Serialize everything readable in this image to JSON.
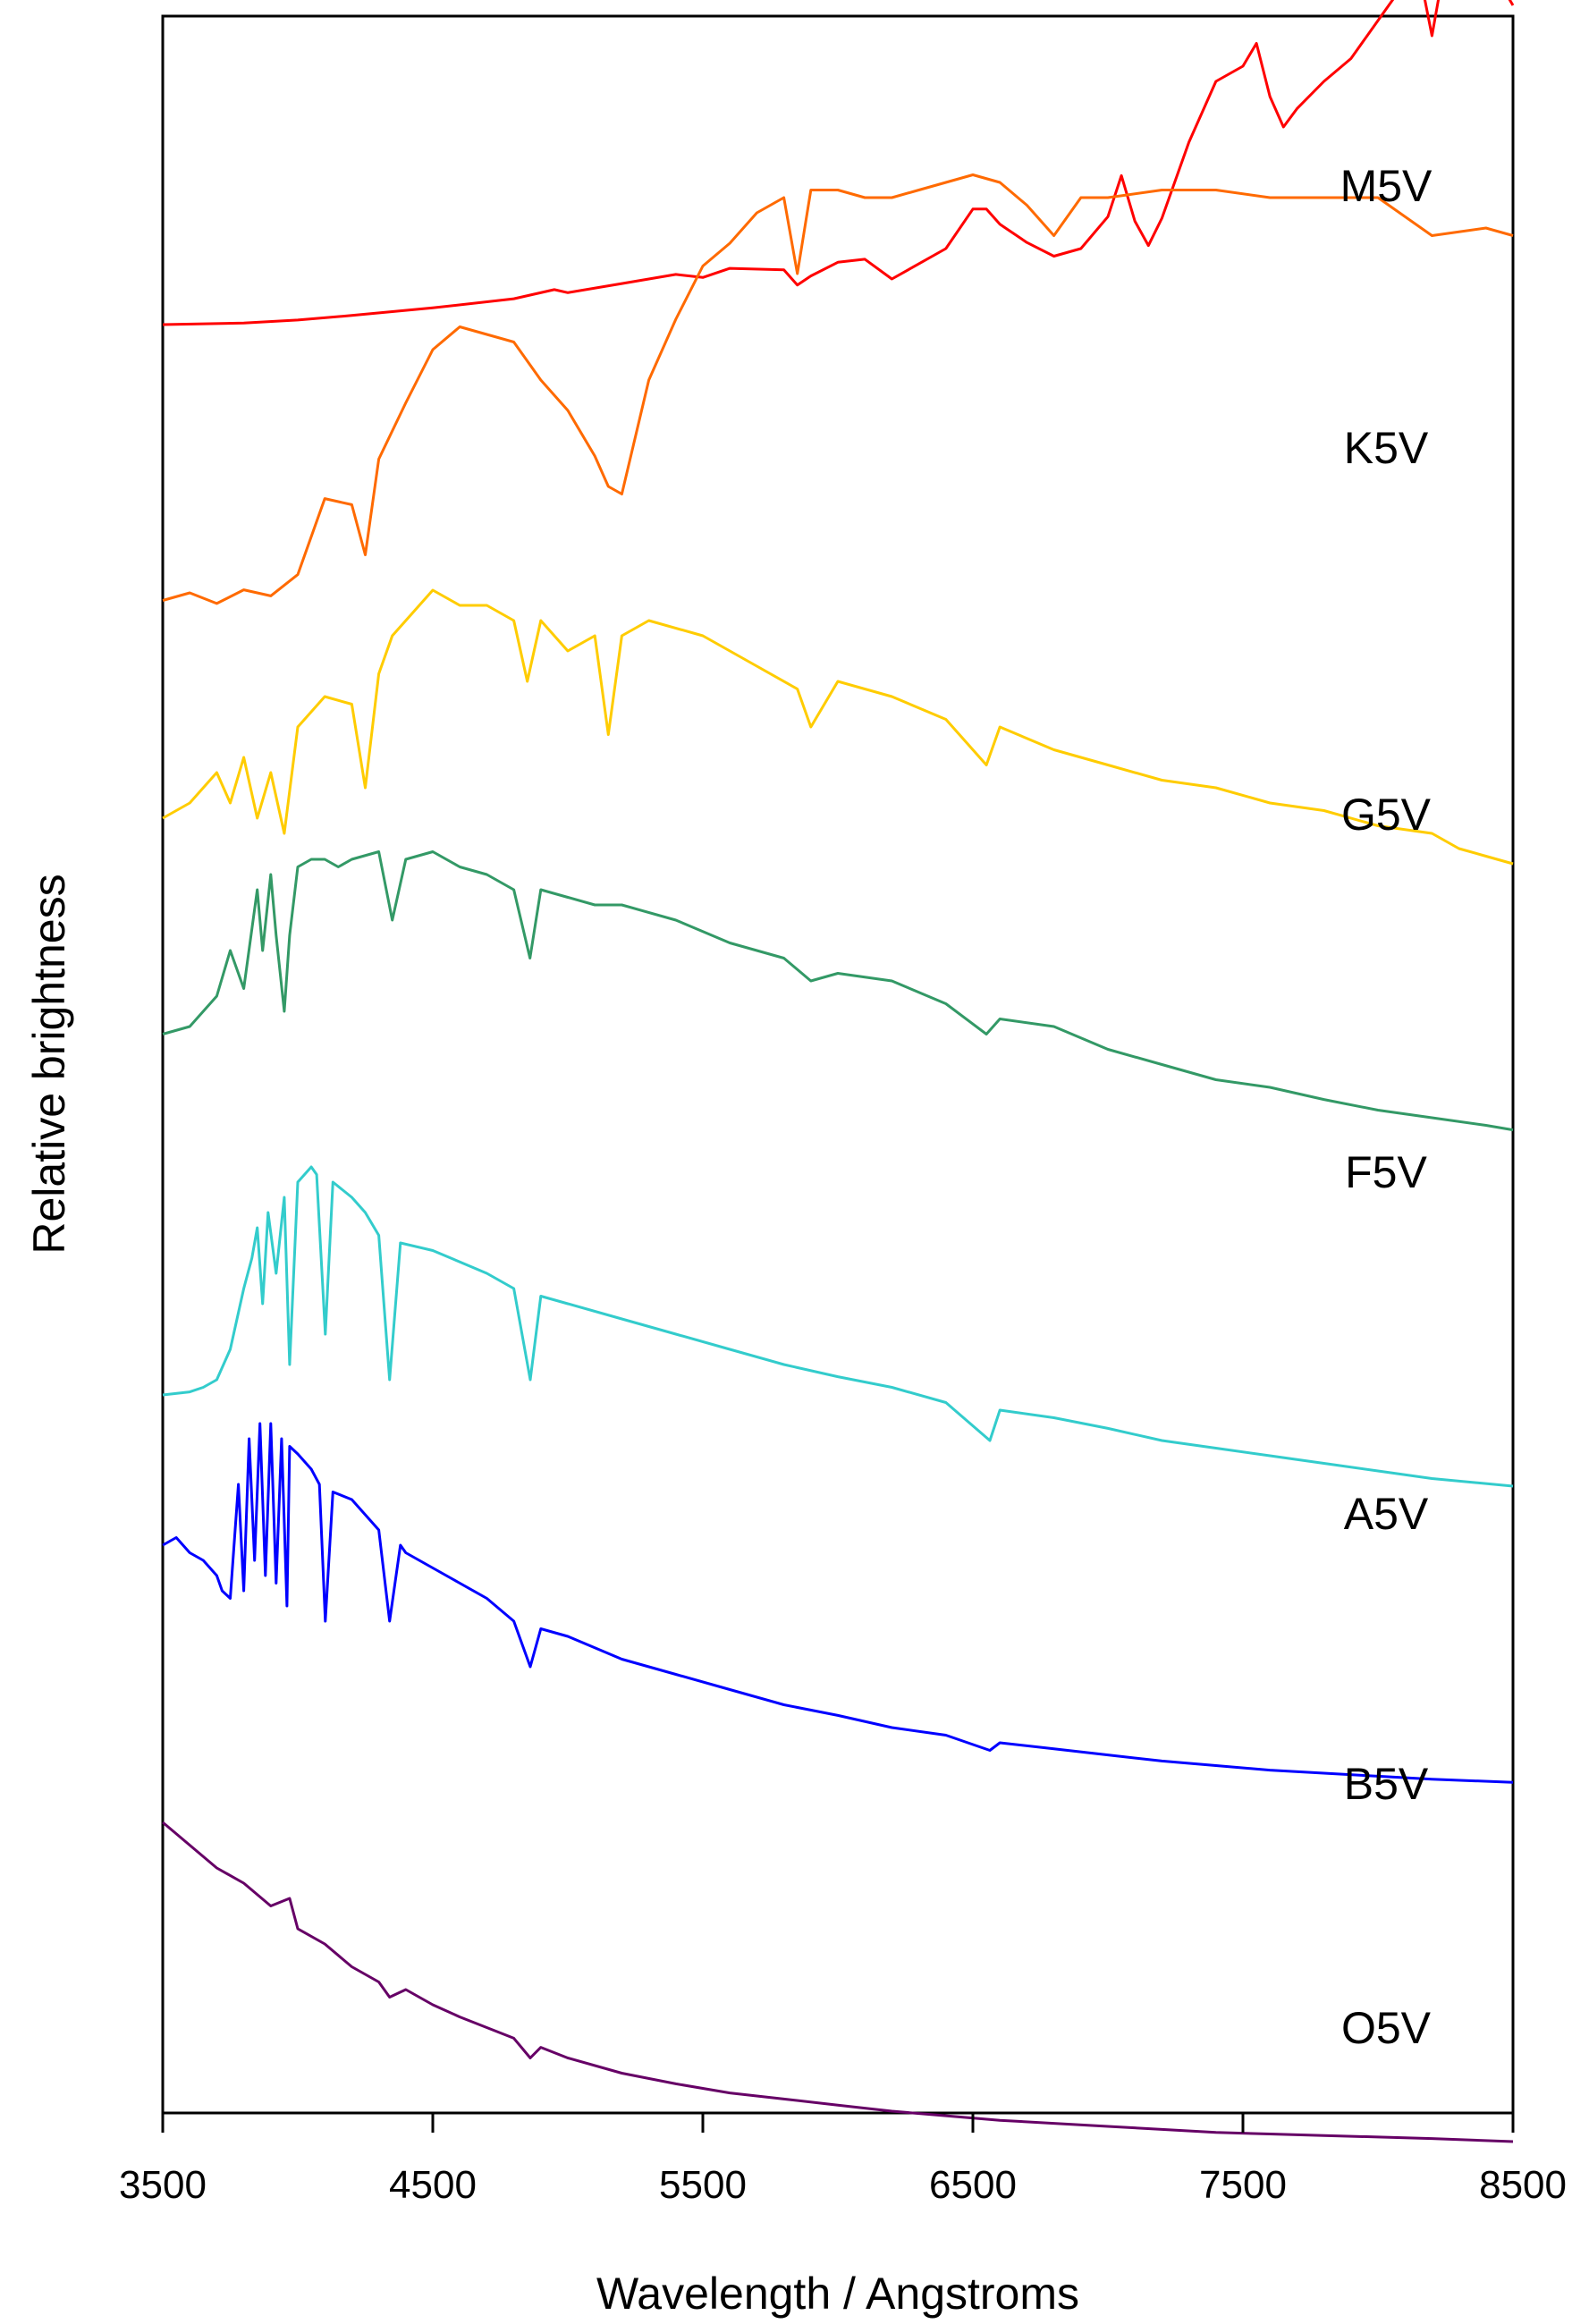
{
  "chart_data": {
    "type": "line",
    "title": "",
    "xlabel": "Wavelength / Angstroms",
    "ylabel": "Relative brightness",
    "xlim": [
      3500,
      8500
    ],
    "xticks": [
      3500,
      4500,
      5500,
      6500,
      7500,
      8500
    ],
    "grid": false,
    "legend": "none; series names printed near the right end of each curve",
    "series": [
      {
        "name": "M5V",
        "color": "#ff0000",
        "x": [
          3500,
          3800,
          4000,
          4200,
          4500,
          4800,
          4950,
          5000,
          5200,
          5400,
          5500,
          5600,
          5800,
          5850,
          5900,
          6000,
          6100,
          6200,
          6400,
          6500,
          6550,
          6600,
          6700,
          6800,
          6900,
          7000,
          7050,
          7100,
          7150,
          7200,
          7300,
          7400,
          7500,
          7550,
          7600,
          7650,
          7700,
          7800,
          7900,
          8000,
          8100,
          8150,
          8200,
          8250,
          8300,
          8400,
          8450,
          8500
        ],
        "y": [
          0.1,
          0.11,
          0.13,
          0.16,
          0.21,
          0.27,
          0.33,
          0.31,
          0.37,
          0.43,
          0.41,
          0.47,
          0.46,
          0.36,
          0.42,
          0.51,
          0.53,
          0.4,
          0.6,
          0.86,
          0.86,
          0.76,
          0.64,
          0.55,
          0.6,
          0.81,
          1.08,
          0.78,
          0.62,
          0.8,
          1.3,
          1.7,
          1.8,
          1.95,
          1.6,
          1.4,
          1.52,
          1.7,
          1.85,
          2.1,
          2.35,
          2.45,
          2.0,
          2.5,
          2.55,
          2.5,
          2.35,
          2.2
        ]
      },
      {
        "name": "K5V",
        "color": "#ff6a00",
        "x": [
          3500,
          3600,
          3700,
          3800,
          3900,
          4000,
          4100,
          4200,
          4250,
          4300,
          4400,
          4500,
          4600,
          4700,
          4800,
          4900,
          5000,
          5100,
          5150,
          5200,
          5300,
          5400,
          5500,
          5600,
          5700,
          5800,
          5850,
          5900,
          6000,
          6100,
          6200,
          6300,
          6400,
          6500,
          6600,
          6700,
          6800,
          6900,
          7000,
          7200,
          7400,
          7600,
          7800,
          8000,
          8200,
          8400,
          8500
        ],
        "y": [
          0.05,
          0.1,
          0.03,
          0.12,
          0.08,
          0.22,
          0.72,
          0.68,
          0.35,
          0.98,
          1.35,
          1.7,
          1.85,
          1.8,
          1.75,
          1.5,
          1.3,
          1.0,
          0.8,
          0.75,
          1.5,
          1.9,
          2.25,
          2.4,
          2.6,
          2.7,
          2.2,
          2.75,
          2.75,
          2.7,
          2.7,
          2.75,
          2.8,
          2.85,
          2.8,
          2.65,
          2.45,
          2.7,
          2.7,
          2.75,
          2.75,
          2.7,
          2.7,
          2.7,
          2.45,
          2.5,
          2.45
        ]
      },
      {
        "name": "G5V",
        "color": "#ffcc00",
        "x": [
          3500,
          3600,
          3700,
          3750,
          3800,
          3850,
          3900,
          3950,
          4000,
          4050,
          4100,
          4200,
          4250,
          4300,
          4350,
          4400,
          4500,
          4600,
          4700,
          4800,
          4850,
          4900,
          5000,
          5100,
          5150,
          5200,
          5300,
          5500,
          5700,
          5850,
          5900,
          6000,
          6200,
          6400,
          6550,
          6600,
          6800,
          7000,
          7200,
          7400,
          7600,
          7800,
          8000,
          8200,
          8300,
          8400,
          8500
        ],
        "y": [
          0.0,
          0.1,
          0.3,
          0.1,
          0.4,
          0.0,
          0.3,
          -0.1,
          0.6,
          0.7,
          0.8,
          0.75,
          0.2,
          0.95,
          1.2,
          1.3,
          1.5,
          1.4,
          1.4,
          1.3,
          0.9,
          1.3,
          1.1,
          1.2,
          0.55,
          1.2,
          1.3,
          1.2,
          1.0,
          0.85,
          0.6,
          0.9,
          0.8,
          0.65,
          0.35,
          0.6,
          0.45,
          0.35,
          0.25,
          0.2,
          0.1,
          0.05,
          -0.05,
          -0.1,
          -0.2,
          -0.25,
          -0.3
        ]
      },
      {
        "name": "F5V",
        "color": "#339966",
        "x": [
          3500,
          3600,
          3700,
          3750,
          3800,
          3850,
          3870,
          3900,
          3920,
          3950,
          3970,
          4000,
          4050,
          4100,
          4150,
          4200,
          4300,
          4350,
          4400,
          4500,
          4600,
          4700,
          4800,
          4860,
          4900,
          5000,
          5100,
          5200,
          5400,
          5600,
          5800,
          5900,
          6000,
          6200,
          6400,
          6550,
          6600,
          6800,
          7000,
          7200,
          7400,
          7600,
          7800,
          8000,
          8200,
          8400,
          8500
        ],
        "y": [
          0.05,
          0.1,
          0.3,
          0.6,
          0.35,
          1.0,
          0.6,
          1.1,
          0.7,
          0.2,
          0.7,
          1.15,
          1.2,
          1.2,
          1.15,
          1.2,
          1.25,
          0.8,
          1.2,
          1.25,
          1.15,
          1.1,
          1.0,
          0.55,
          1.0,
          0.95,
          0.9,
          0.9,
          0.8,
          0.65,
          0.55,
          0.4,
          0.45,
          0.4,
          0.25,
          0.05,
          0.15,
          0.1,
          -0.05,
          -0.15,
          -0.25,
          -0.3,
          -0.38,
          -0.45,
          -0.5,
          -0.55,
          -0.58
        ]
      },
      {
        "name": "A5V",
        "color": "#33cccc",
        "x": [
          3500,
          3600,
          3650,
          3700,
          3750,
          3800,
          3830,
          3850,
          3870,
          3890,
          3920,
          3950,
          3970,
          4000,
          4050,
          4070,
          4102,
          4130,
          4200,
          4250,
          4300,
          4340,
          4380,
          4500,
          4700,
          4800,
          4861,
          4900,
          5000,
          5200,
          5400,
          5600,
          5800,
          6000,
          6200,
          6400,
          6563,
          6600,
          6800,
          7000,
          7200,
          7400,
          7600,
          7800,
          8000,
          8200,
          8500
        ],
        "y": [
          0.0,
          0.02,
          0.05,
          0.1,
          0.3,
          0.7,
          0.9,
          1.1,
          0.6,
          1.2,
          0.8,
          1.3,
          0.2,
          1.4,
          1.5,
          1.45,
          0.4,
          1.4,
          1.3,
          1.2,
          1.05,
          0.1,
          1.0,
          0.95,
          0.8,
          0.7,
          0.1,
          0.65,
          0.6,
          0.5,
          0.4,
          0.3,
          0.2,
          0.12,
          0.05,
          -0.05,
          -0.3,
          -0.1,
          -0.15,
          -0.22,
          -0.3,
          -0.35,
          -0.4,
          -0.45,
          -0.5,
          -0.55,
          -0.6
        ]
      },
      {
        "name": "B5V",
        "color": "#0000ff",
        "x": [
          3500,
          3550,
          3600,
          3650,
          3700,
          3720,
          3750,
          3780,
          3800,
          3820,
          3840,
          3860,
          3880,
          3900,
          3920,
          3940,
          3960,
          3970,
          4000,
          4050,
          4080,
          4102,
          4130,
          4200,
          4250,
          4300,
          4340,
          4380,
          4400,
          4500,
          4600,
          4700,
          4800,
          4861,
          4900,
          5000,
          5200,
          5400,
          5600,
          5800,
          6000,
          6200,
          6400,
          6563,
          6600,
          6800,
          7000,
          7200,
          7400,
          7600,
          7800,
          8000,
          8200,
          8500
        ],
        "y": [
          0.6,
          0.65,
          0.55,
          0.5,
          0.4,
          0.3,
          0.25,
          1.0,
          0.3,
          1.3,
          0.5,
          1.4,
          0.4,
          1.4,
          0.35,
          1.3,
          0.2,
          1.25,
          1.2,
          1.1,
          1.0,
          0.1,
          0.95,
          0.9,
          0.8,
          0.7,
          0.1,
          0.6,
          0.55,
          0.45,
          0.35,
          0.25,
          0.1,
          -0.2,
          0.05,
          0.0,
          -0.15,
          -0.25,
          -0.35,
          -0.45,
          -0.52,
          -0.6,
          -0.65,
          -0.75,
          -0.7,
          -0.74,
          -0.78,
          -0.82,
          -0.85,
          -0.88,
          -0.9,
          -0.92,
          -0.94,
          -0.96
        ]
      },
      {
        "name": "O5V",
        "color": "#660066",
        "x": [
          3500,
          3600,
          3700,
          3800,
          3900,
          3970,
          4000,
          4100,
          4200,
          4300,
          4340,
          4400,
          4500,
          4600,
          4700,
          4800,
          4861,
          4900,
          5000,
          5200,
          5400,
          5600,
          5800,
          6000,
          6200,
          6400,
          6600,
          6800,
          7000,
          7200,
          7400,
          7600,
          7800,
          8000,
          8200,
          8500
        ],
        "y": [
          0.6,
          0.45,
          0.3,
          0.2,
          0.05,
          0.1,
          -0.1,
          -0.2,
          -0.35,
          -0.45,
          -0.55,
          -0.5,
          -0.6,
          -0.68,
          -0.75,
          -0.82,
          -0.95,
          -0.88,
          -0.95,
          -1.05,
          -1.12,
          -1.18,
          -1.22,
          -1.26,
          -1.3,
          -1.33,
          -1.36,
          -1.38,
          -1.4,
          -1.42,
          -1.44,
          -1.45,
          -1.46,
          -1.47,
          -1.48,
          -1.5
        ]
      }
    ]
  }
}
